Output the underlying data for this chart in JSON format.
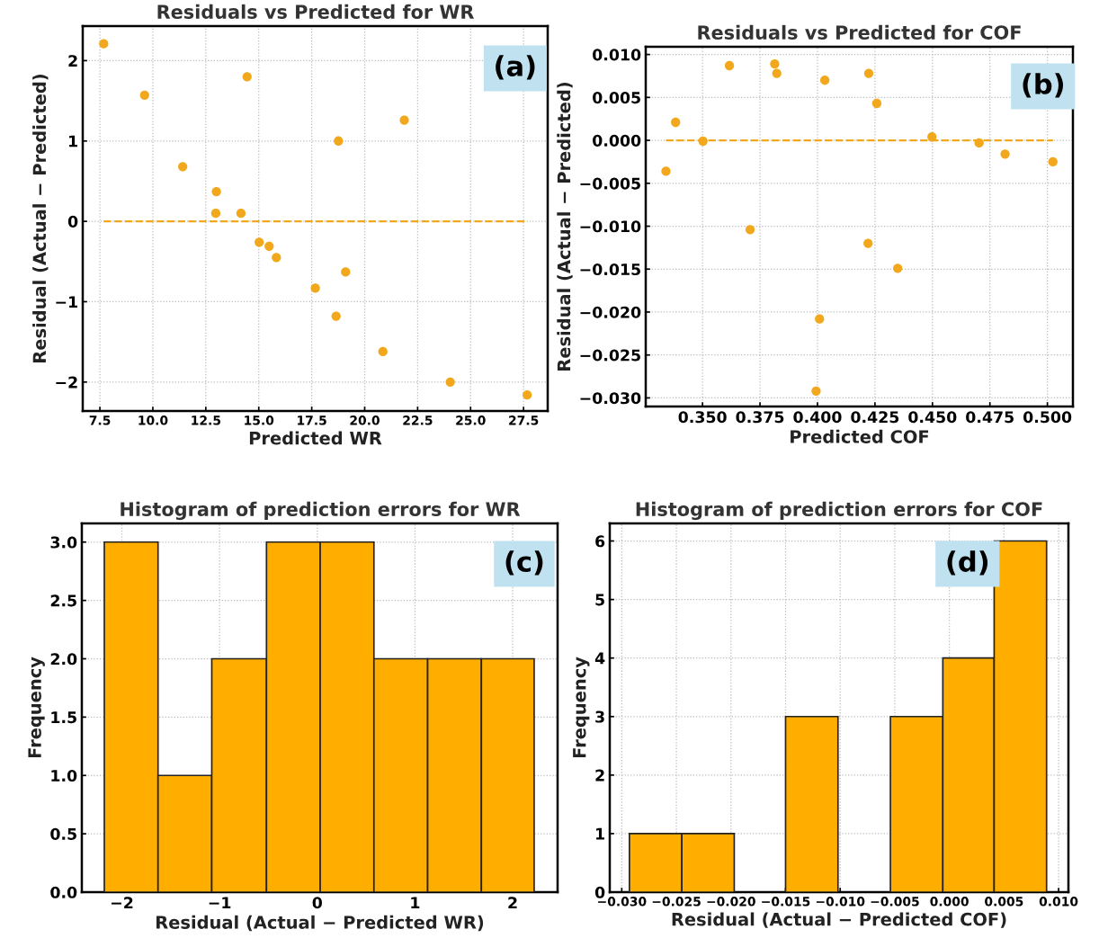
{
  "chart_data": [
    {
      "type": "scatter",
      "title": "Residuals vs Predicted for WR",
      "xlabel": "Predicted WR",
      "ylabel": "Residual (Actual − Predicted)",
      "annotations": [
        "(a)"
      ],
      "marker": "circle",
      "grid": true,
      "x": [
        7.68,
        9.61,
        11.41,
        13.0,
        12.97,
        14.45,
        14.16,
        15.02,
        15.49,
        15.83,
        18.76,
        19.1,
        17.67,
        18.65,
        21.87,
        20.86,
        24.04,
        27.67
      ],
      "series": [
        {
          "color": "#f2a81d",
          "values": [
            2.21,
            1.57,
            0.68,
            0.37,
            0.1,
            1.8,
            0.1,
            -0.26,
            -0.31,
            -0.45,
            1.0,
            -0.63,
            -0.83,
            -1.18,
            1.26,
            -1.62,
            -2.0,
            -2.16
          ]
        }
      ],
      "ref_lines": [
        {
          "axis": "y",
          "value": 0,
          "color": "#f2a81d",
          "line_style": "dashed"
        }
      ],
      "xlim": [
        6.69,
        28.64
      ],
      "ylim": [
        -2.36,
        2.43
      ],
      "xticks": [
        {
          "value": 7.5,
          "label": "7.5"
        },
        {
          "value": 10,
          "label": "10.0"
        },
        {
          "value": 12.5,
          "label": "12.5"
        },
        {
          "value": 15,
          "label": "15.0"
        },
        {
          "value": 17.5,
          "label": "17.5"
        },
        {
          "value": 20,
          "label": "20.0"
        },
        {
          "value": 22.5,
          "label": "22.5"
        },
        {
          "value": 25,
          "label": "25.0"
        },
        {
          "value": 27.5,
          "label": "27.5"
        }
      ],
      "yticks": [
        {
          "value": -2,
          "label": "−2"
        },
        {
          "value": -1,
          "label": "−1"
        },
        0,
        1,
        2
      ]
    },
    {
      "type": "scatter",
      "title": "Residuals vs Predicted for COF",
      "xlabel": "Predicted COF",
      "ylabel": "Residual (Actual − Predicted)",
      "annotations": [
        "(b)"
      ],
      "marker": "circle",
      "grid": true,
      "x": [
        0.3341,
        0.3383,
        0.3502,
        0.3617,
        0.3707,
        0.3814,
        0.3823,
        0.4032,
        0.4009,
        0.3994,
        0.4223,
        0.4258,
        0.422,
        0.4349,
        0.4498,
        0.4703,
        0.4816,
        0.5024
      ],
      "series": [
        {
          "color": "#f2a81d",
          "values": [
            -0.0036,
            0.0021,
            -0.0001,
            0.0087,
            -0.0104,
            0.0089,
            0.0078,
            0.007,
            -0.0208,
            -0.0292,
            0.0078,
            0.0043,
            -0.012,
            -0.0149,
            0.0004,
            -0.0003,
            -0.0016,
            -0.0025
          ]
        }
      ],
      "ref_lines": [
        {
          "axis": "y",
          "value": 0,
          "color": "#f2a81d",
          "line_style": "dashed"
        }
      ],
      "xlim": [
        0.3253,
        0.5111
      ],
      "ylim": [
        -0.031,
        0.0109
      ],
      "xticks": [
        {
          "value": 0.35,
          "label": "0.350"
        },
        {
          "value": 0.375,
          "label": "0.375"
        },
        {
          "value": 0.4,
          "label": "0.400"
        },
        {
          "value": 0.425,
          "label": "0.425"
        },
        {
          "value": 0.45,
          "label": "0.450"
        },
        {
          "value": 0.475,
          "label": "0.475"
        },
        {
          "value": 0.5,
          "label": "0.500"
        }
      ],
      "yticks": [
        {
          "value": -0.03,
          "label": "−0.030"
        },
        {
          "value": -0.025,
          "label": "−0.025"
        },
        {
          "value": -0.02,
          "label": "−0.020"
        },
        {
          "value": -0.015,
          "label": "−0.015"
        },
        {
          "value": -0.01,
          "label": "−0.010"
        },
        {
          "value": -0.005,
          "label": "−0.005"
        },
        {
          "value": 0,
          "label": "0.000"
        },
        {
          "value": 0.005,
          "label": "0.005"
        },
        {
          "value": 0.01,
          "label": "0.010"
        }
      ]
    },
    {
      "type": "histogram",
      "title": "Histogram of prediction errors for WR",
      "xlabel": "Residual (Actual − Predicted WR)",
      "ylabel": "Frequency",
      "annotations": [
        "(c)"
      ],
      "grid": true,
      "color": "#ffae00",
      "bins": [
        -2.18,
        -1.63,
        -1.08,
        -0.52,
        0.03,
        0.58,
        1.13,
        1.68,
        2.22
      ],
      "values": [
        3,
        1,
        2,
        3,
        3,
        2,
        2,
        2
      ],
      "xlim": [
        -2.41,
        2.46
      ],
      "ylim": [
        0,
        3.16
      ],
      "xticks": [
        {
          "value": -2,
          "label": "−2"
        },
        {
          "value": -1,
          "label": "−1"
        },
        0,
        1,
        2
      ],
      "yticks": [
        {
          "value": 0,
          "label": "0.0"
        },
        {
          "value": 0.5,
          "label": "0.5"
        },
        {
          "value": 1,
          "label": "1.0"
        },
        {
          "value": 1.5,
          "label": "1.5"
        },
        {
          "value": 2,
          "label": "2.0"
        },
        {
          "value": 2.5,
          "label": "2.5"
        },
        {
          "value": 3,
          "label": "3.0"
        }
      ]
    },
    {
      "type": "histogram",
      "title": "Histogram of prediction errors for COF",
      "xlabel": "Residual (Actual − Predicted COF)",
      "ylabel": "Frequency",
      "annotations": [
        "(d)"
      ],
      "grid": true,
      "color": "#ffae00",
      "bins": [
        -0.0293,
        -0.0245,
        -0.0197,
        -0.015,
        -0.0102,
        -0.0054,
        -0.0006,
        0.0041,
        0.0089
      ],
      "values": [
        1,
        1,
        0,
        3,
        0,
        3,
        4,
        6
      ],
      "xlim": [
        -0.0311,
        0.0109
      ],
      "ylim": [
        0,
        6.3
      ],
      "xticks": [
        {
          "value": -0.03,
          "label": "−0.030"
        },
        {
          "value": -0.025,
          "label": "−0.025"
        },
        {
          "value": -0.02,
          "label": "−0.020"
        },
        {
          "value": -0.015,
          "label": "−0.015"
        },
        {
          "value": -0.01,
          "label": "−0.010"
        },
        {
          "value": -0.005,
          "label": "−0.005"
        },
        {
          "value": 0,
          "label": "0.000"
        },
        {
          "value": 0.005,
          "label": "0.005"
        },
        {
          "value": 0.01,
          "label": "0.010"
        }
      ],
      "yticks": [
        0,
        1,
        2,
        3,
        4,
        5,
        6
      ]
    }
  ]
}
